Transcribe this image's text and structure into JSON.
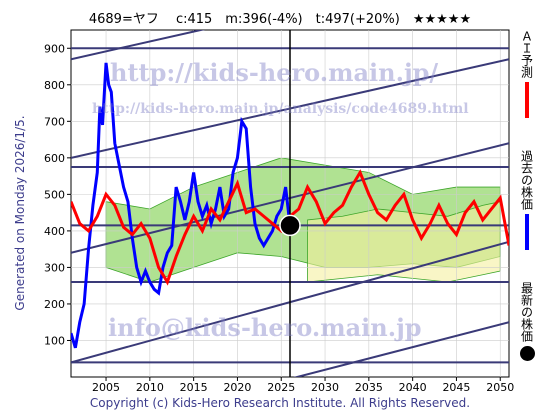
{
  "header": {
    "title": "4689=ヤフ　 c:415　m:396(-4%)　t:497(+20%)　★★★★★"
  },
  "side_label": "Generated on Monday 2026/1/5.",
  "footer": {
    "copyright": "Copyright (c) Kids-Hero Research Institute. All Rights Reserved."
  },
  "watermarks": {
    "site": "http://kids-hero.main.jp/",
    "analysis_url": "http://kids-hero.main.jp/analysis/code4689.html",
    "email": "info@kids-hero.main.jp"
  },
  "legend": {
    "ai": "ＡＩ予測",
    "past": "過去の株価",
    "latest": "最新の株価"
  },
  "colors": {
    "ai": "#ff0000",
    "past": "#0000ff",
    "latest": "#000000",
    "band_green": "#7ccf4a",
    "band_yellow": "#f5f0a0",
    "channel": "#3a3a78"
  },
  "chart_data": {
    "type": "line",
    "xlim": [
      2001,
      2051
    ],
    "ylim": [
      0,
      950
    ],
    "x_ticks": [
      2005,
      2010,
      2015,
      2020,
      2025,
      2030,
      2035,
      2040,
      2045,
      2050
    ],
    "y_ticks": [
      100,
      200,
      300,
      400,
      500,
      600,
      700,
      800,
      900
    ],
    "grid": true,
    "latest_point": {
      "x": 2026.0,
      "y": 415
    },
    "horizontal_levels": [
      40,
      260,
      415,
      575,
      900
    ],
    "channels": [
      {
        "x0": 2001,
        "y0": 870,
        "x1": 2051,
        "y1": 1140
      },
      {
        "x0": 2001,
        "y0": 600,
        "x1": 2051,
        "y1": 870
      },
      {
        "x0": 2001,
        "y0": 340,
        "x1": 2051,
        "y1": 640
      },
      {
        "x0": 2001,
        "y0": 40,
        "x1": 2051,
        "y1": 370
      },
      {
        "x0": 2001,
        "y0": -160,
        "x1": 2051,
        "y1": 150
      }
    ],
    "series": [
      {
        "name": "過去の株価",
        "x": [
          2001,
          2001.5,
          2002,
          2002.5,
          2003,
          2003.5,
          2004,
          2004.3,
          2004.6,
          2005,
          2005.3,
          2005.6,
          2006,
          2006.5,
          2007,
          2007.5,
          2008,
          2008.5,
          2009,
          2009.5,
          2010,
          2010.5,
          2011,
          2011.5,
          2012,
          2012.5,
          2013,
          2013.5,
          2014,
          2014.5,
          2015,
          2015.5,
          2016,
          2016.5,
          2017,
          2017.5,
          2018,
          2018.5,
          2019,
          2019.5,
          2020,
          2020.5,
          2021,
          2021.5,
          2022,
          2022.5,
          2023,
          2023.5,
          2024,
          2024.5,
          2025,
          2025.5,
          2026
        ],
        "y": [
          120,
          80,
          150,
          200,
          350,
          470,
          560,
          740,
          690,
          860,
          800,
          780,
          640,
          580,
          520,
          480,
          380,
          300,
          260,
          290,
          260,
          240,
          230,
          300,
          340,
          360,
          520,
          480,
          430,
          480,
          560,
          480,
          440,
          470,
          420,
          460,
          520,
          440,
          460,
          560,
          600,
          700,
          680,
          520,
          420,
          380,
          360,
          380,
          400,
          440,
          460,
          520,
          415
        ]
      },
      {
        "name": "ＡＩ予測",
        "x": [
          2001,
          2002,
          2003,
          2004,
          2005,
          2006,
          2007,
          2008,
          2009,
          2010,
          2011,
          2012,
          2013,
          2014,
          2015,
          2016,
          2017,
          2018,
          2019,
          2020,
          2021,
          2022,
          2023,
          2024,
          2025,
          2026,
          2027,
          2028,
          2029,
          2030,
          2031,
          2032,
          2033,
          2034,
          2035,
          2036,
          2037,
          2038,
          2039,
          2040,
          2041,
          2042,
          2043,
          2044,
          2045,
          2046,
          2047,
          2048,
          2049,
          2050,
          2051
        ],
        "y": [
          480,
          420,
          400,
          440,
          500,
          470,
          410,
          390,
          420,
          380,
          300,
          260,
          330,
          390,
          440,
          400,
          460,
          430,
          480,
          530,
          450,
          460,
          440,
          420,
          400,
          440,
          460,
          520,
          480,
          420,
          450,
          470,
          520,
          560,
          500,
          450,
          430,
          470,
          500,
          430,
          380,
          420,
          470,
          420,
          390,
          450,
          480,
          430,
          460,
          490,
          360
        ]
      }
    ],
    "bands": [
      {
        "name": "green",
        "x": [
          2005,
          2010,
          2015,
          2020,
          2025,
          2030,
          2035,
          2040,
          2045,
          2050
        ],
        "low": [
          300,
          260,
          300,
          340,
          330,
          300,
          300,
          310,
          300,
          330
        ],
        "high": [
          480,
          460,
          520,
          560,
          600,
          580,
          560,
          500,
          520,
          520
        ]
      },
      {
        "name": "yellow",
        "x": [
          2028,
          2032,
          2036,
          2040,
          2044,
          2048,
          2050
        ],
        "low": [
          260,
          270,
          280,
          270,
          260,
          280,
          290
        ],
        "high": [
          430,
          440,
          460,
          450,
          440,
          470,
          480
        ]
      }
    ]
  }
}
